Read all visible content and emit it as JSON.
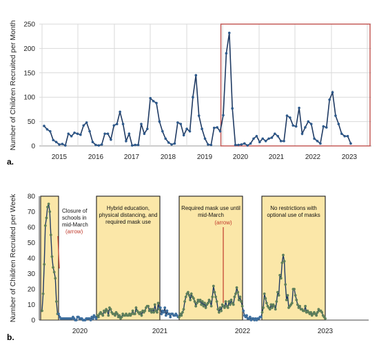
{
  "chart_data": [
    {
      "type": "line",
      "panel_label": "a.",
      "ylabel": "Number of Children Recruited per Month",
      "ylim": [
        0,
        250
      ],
      "yticks": [
        0,
        50,
        100,
        150,
        200,
        250
      ],
      "xlabels": [
        "2015",
        "2016",
        "2017",
        "2018",
        "2019",
        "2020",
        "2021",
        "2022",
        "2023"
      ],
      "grid": true,
      "colors": {
        "line": "#1f3a63",
        "marker": "#2e5a8c",
        "highlight_box": "#c0504d"
      },
      "series": [
        {
          "values": [
            41,
            34,
            30,
            12,
            8,
            3,
            4,
            1,
            25,
            20,
            27,
            25,
            23,
            42,
            48,
            30,
            8,
            2,
            1,
            3,
            25,
            25,
            13,
            42,
            45,
            70,
            45,
            10,
            25,
            1,
            2,
            2,
            45,
            25,
            35,
            98,
            92,
            88,
            50,
            30,
            15,
            7,
            3,
            5,
            48,
            45,
            22,
            35,
            30,
            100,
            145,
            62,
            35,
            15,
            3,
            2,
            37,
            38,
            30,
            63,
            190,
            232,
            77,
            2,
            2,
            3,
            5,
            1,
            5,
            15,
            20,
            8,
            15,
            10,
            15,
            17,
            25,
            20,
            10,
            10,
            62,
            58,
            42,
            40,
            78,
            25,
            38,
            50,
            45,
            15,
            10,
            5,
            40,
            38,
            95,
            110,
            62,
            45,
            25,
            20,
            20,
            5
          ]
        }
      ]
    },
    {
      "type": "line",
      "panel_label": "b.",
      "ylabel": "Number of Children Recruited per Week",
      "ylim": [
        0,
        80
      ],
      "yticks": [
        0,
        10,
        20,
        30,
        40,
        50,
        60,
        70,
        80
      ],
      "xlabels": [
        "2020",
        "2021",
        "2022",
        "2023"
      ],
      "grid": false,
      "colors": {
        "line": "#1f3a63",
        "marker": "#3d6e9e",
        "marker_shaded": "#5f7f5a",
        "box_fill": "#fbe7a8",
        "arrow": "#c0392b"
      },
      "series": [
        {
          "values": [
            6,
            17,
            36,
            61,
            66,
            73,
            75,
            70,
            55,
            41,
            34,
            31,
            27,
            12,
            4,
            4,
            2,
            1,
            1,
            1,
            1,
            1,
            1,
            1,
            1,
            1,
            1,
            1,
            2,
            1,
            0,
            0,
            2,
            2,
            1,
            1,
            1,
            0,
            0,
            0,
            1,
            1,
            1,
            1,
            0,
            2,
            1,
            3,
            2,
            1,
            3,
            2,
            4,
            5,
            4,
            3,
            6,
            5,
            7,
            6,
            3,
            8,
            7,
            5,
            4,
            4,
            3,
            5,
            4,
            2,
            3,
            1,
            2,
            4,
            3,
            3,
            4,
            3,
            3,
            4,
            3,
            4,
            6,
            4,
            4,
            8,
            6,
            5,
            4,
            5,
            3,
            6,
            5,
            6,
            8,
            9,
            9,
            6,
            7,
            5,
            7,
            5,
            10,
            6,
            5,
            11,
            7,
            8,
            4,
            6,
            5,
            8,
            3,
            6,
            4,
            4,
            2,
            4,
            4,
            3,
            3,
            4,
            3,
            2,
            2,
            4,
            3,
            5,
            7,
            12,
            15,
            17,
            18,
            16,
            13,
            17,
            15,
            14,
            12,
            9,
            11,
            13,
            12,
            13,
            10,
            12,
            9,
            11,
            8,
            10,
            11,
            13,
            12,
            9,
            15,
            22,
            18,
            15,
            12,
            7,
            5,
            8,
            6,
            10,
            9,
            8,
            12,
            9,
            8,
            12,
            10,
            13,
            11,
            10,
            15,
            17,
            21,
            18,
            13,
            15,
            12,
            9,
            6,
            3,
            2,
            3,
            1,
            1,
            2,
            0,
            1,
            1,
            0,
            1,
            0,
            1,
            1,
            2,
            2,
            5,
            8,
            17,
            14,
            11,
            9,
            8,
            7,
            10,
            8,
            10,
            9,
            7,
            12,
            18,
            16,
            29,
            27,
            37,
            42,
            38,
            23,
            13,
            16,
            8,
            9,
            10,
            11,
            20,
            20,
            16,
            13,
            10,
            8,
            9,
            7,
            7,
            6,
            6,
            9,
            5,
            6,
            5,
            4,
            5,
            3,
            4,
            5,
            4,
            3,
            5,
            7,
            6,
            6,
            5,
            3,
            2,
            1
          ]
        }
      ],
      "annotations": [
        "Closure of schools in mid-March",
        "(arrow)",
        "Hybrid education, physical distancing, and required mask use",
        "Required mask use until mid-March",
        "(arrow)",
        "No restrictions with optional use of masks"
      ]
    }
  ]
}
